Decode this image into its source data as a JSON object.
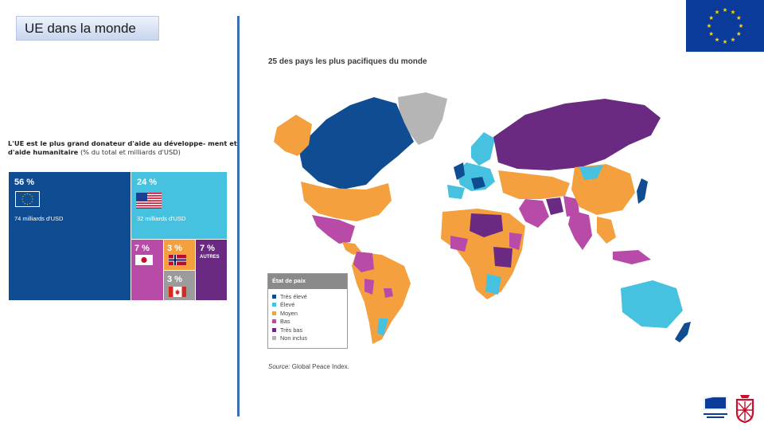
{
  "slide": {
    "title": "UE dans la monde"
  },
  "aid": {
    "title_bold": "L'UE est le plus grand donateur d'aide au développe- ment et d'aide humanitaire",
    "title_rest": " (% du total et milliards d'USD)",
    "eu": {
      "pct": "56 %",
      "amount": "74 milliards d'USD",
      "color": "#0f4c92"
    },
    "us": {
      "pct": "24 %",
      "amount": "32 milliards d'USD",
      "color": "#46c2e0"
    },
    "jp": {
      "pct": "7 %",
      "color": "#b84aa8"
    },
    "no": {
      "pct": "3 %",
      "color": "#f4a03e"
    },
    "ca": {
      "pct": "3 %",
      "color": "#9b9b9b"
    },
    "other": {
      "pct": "7 %",
      "label": "AUTRES",
      "color": "#6a2a82"
    }
  },
  "map": {
    "title": "25 des pays les plus pacifiques du monde",
    "legend_title": "État de paix",
    "legend": [
      {
        "label": "Très élevé",
        "color": "#0f4c92"
      },
      {
        "label": "Élevé",
        "color": "#46c2e0"
      },
      {
        "label": "Moyen",
        "color": "#f4a03e"
      },
      {
        "label": "Bas",
        "color": "#b84aa8"
      },
      {
        "label": "Très bas",
        "color": "#6a2a82"
      },
      {
        "label": "Non inclus",
        "color": "#b5b5b5"
      }
    ],
    "source_label": "Source:",
    "source_text": " Global Peace Index."
  }
}
